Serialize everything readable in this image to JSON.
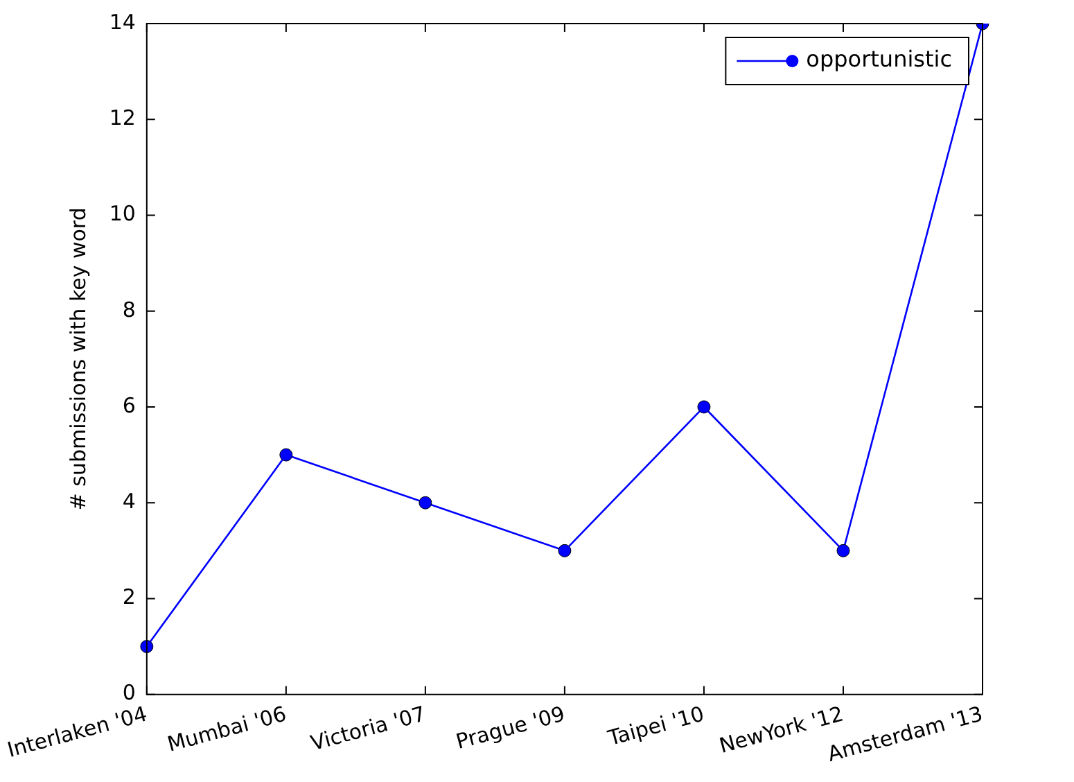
{
  "chart_data": {
    "type": "line",
    "ylabel": "# submissions with key word",
    "categories": [
      "Interlaken '04",
      "Mumbai '06",
      "Victoria '07",
      "Prague '09",
      "Taipei '10",
      "NewYork '12",
      "Amsterdam '13"
    ],
    "series": [
      {
        "name": "opportunistic",
        "color": "#0000ff",
        "values": [
          1,
          5,
          4,
          3,
          6,
          3,
          14
        ]
      }
    ],
    "ylim": [
      0,
      14
    ],
    "yticks": [
      0,
      2,
      4,
      6,
      8,
      10,
      12,
      14
    ],
    "grid": false,
    "legend": "top right",
    "marker": "circle",
    "line_style": "solid"
  }
}
